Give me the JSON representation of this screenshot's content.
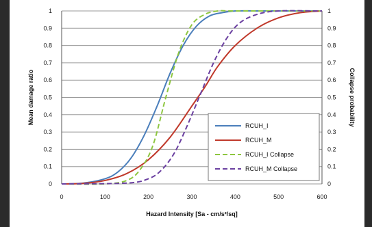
{
  "chart_data": {
    "type": "line",
    "title": "",
    "xlabel": "Hazard Intensity [Sa - cm/s²/sq]",
    "ylabel": "Mean damage ratio",
    "ylabel_right": "Collapse probability",
    "xlim": [
      0,
      600
    ],
    "ylim": [
      0,
      1
    ],
    "x_ticks": [
      "0",
      "100",
      "200",
      "300",
      "400",
      "500",
      "600"
    ],
    "y_ticks": [
      "0",
      "0.1",
      "0.2",
      "0.3",
      "0.4",
      "0.5",
      "0.6",
      "0.7",
      "0.8",
      "0.9",
      "1"
    ],
    "y_ticks_right": [
      "0",
      "0.1",
      "0.2",
      "0.3",
      "0.4",
      "0.5",
      "0.6",
      "0.7",
      "0.8",
      "0.9",
      "1"
    ],
    "grid": true,
    "legend_position": "bottom-right",
    "series": [
      {
        "name": "RCUH_I",
        "color": "#4a7ebb",
        "dash": "solid",
        "x": [
          0,
          50,
          100,
          130,
          160,
          190,
          220,
          250,
          280,
          310,
          340,
          370,
          400,
          450,
          500,
          600
        ],
        "y": [
          0,
          0.005,
          0.03,
          0.07,
          0.15,
          0.28,
          0.45,
          0.64,
          0.8,
          0.91,
          0.97,
          0.99,
          1.0,
          1.0,
          1.0,
          1.0
        ]
      },
      {
        "name": "RCUH_M",
        "color": "#c0392b",
        "dash": "solid",
        "x": [
          0,
          50,
          100,
          150,
          200,
          250,
          300,
          330,
          360,
          400,
          450,
          500,
          550,
          600
        ],
        "y": [
          0,
          0.003,
          0.02,
          0.06,
          0.14,
          0.27,
          0.45,
          0.56,
          0.68,
          0.8,
          0.9,
          0.96,
          0.99,
          1.0
        ]
      },
      {
        "name": "RCUH_I Collapse",
        "color": "#8dc63f",
        "dash": "dashed",
        "x": [
          0,
          100,
          150,
          180,
          210,
          240,
          270,
          300,
          330,
          360,
          400,
          600
        ],
        "y": [
          0,
          0.0,
          0.02,
          0.08,
          0.22,
          0.5,
          0.76,
          0.92,
          0.98,
          1.0,
          1.0,
          1.0
        ]
      },
      {
        "name": "RCUH_M Collapse",
        "color": "#6a3fa0",
        "dash": "dashed",
        "x": [
          0,
          150,
          200,
          230,
          260,
          290,
          320,
          350,
          380,
          410,
          450,
          500,
          600
        ],
        "y": [
          0,
          0.005,
          0.03,
          0.08,
          0.18,
          0.34,
          0.52,
          0.7,
          0.84,
          0.93,
          0.98,
          1.0,
          1.0
        ]
      }
    ]
  }
}
